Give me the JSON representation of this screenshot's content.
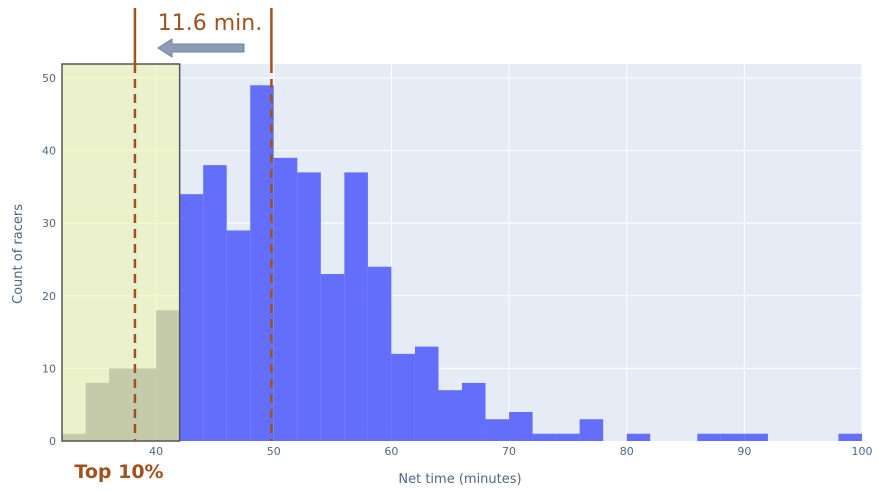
{
  "chart_data": {
    "type": "bar",
    "title": "",
    "xlabel": "Net time (minutes)",
    "ylabel": "Count of racers",
    "xlim": [
      32,
      100
    ],
    "ylim": [
      0,
      52
    ],
    "x_ticks": [
      "40",
      "50",
      "60",
      "70",
      "80",
      "90",
      "100"
    ],
    "x_tick_values": [
      40,
      50,
      60,
      70,
      80,
      90,
      100
    ],
    "y_ticks": [
      "0",
      "10",
      "20",
      "30",
      "40",
      "50"
    ],
    "y_tick_values": [
      0,
      10,
      20,
      30,
      40,
      50
    ],
    "bin_width": 2,
    "bins": [
      {
        "start": 32,
        "count": 1
      },
      {
        "start": 34,
        "count": 8
      },
      {
        "start": 36,
        "count": 10
      },
      {
        "start": 38,
        "count": 10
      },
      {
        "start": 40,
        "count": 18
      },
      {
        "start": 42,
        "count": 34
      },
      {
        "start": 44,
        "count": 38
      },
      {
        "start": 46,
        "count": 29
      },
      {
        "start": 48,
        "count": 49
      },
      {
        "start": 50,
        "count": 39
      },
      {
        "start": 52,
        "count": 37
      },
      {
        "start": 54,
        "count": 23
      },
      {
        "start": 56,
        "count": 37
      },
      {
        "start": 58,
        "count": 24
      },
      {
        "start": 60,
        "count": 12
      },
      {
        "start": 62,
        "count": 13
      },
      {
        "start": 64,
        "count": 7
      },
      {
        "start": 66,
        "count": 8
      },
      {
        "start": 68,
        "count": 3
      },
      {
        "start": 70,
        "count": 4
      },
      {
        "start": 72,
        "count": 1
      },
      {
        "start": 74,
        "count": 1
      },
      {
        "start": 76,
        "count": 3
      },
      {
        "start": 80,
        "count": 1
      },
      {
        "start": 86,
        "count": 1
      },
      {
        "start": 88,
        "count": 1
      },
      {
        "start": 90,
        "count": 1
      },
      {
        "start": 98,
        "count": 1
      }
    ],
    "highlight_region": {
      "x_end": 42,
      "label": "Top 10%"
    },
    "reference_lines": [
      {
        "x": 38.2
      },
      {
        "x": 49.8
      }
    ],
    "difference_annotation": {
      "label": "11.6 min."
    },
    "grid": true,
    "colors": {
      "bar": "#636efa",
      "plot_bg": "#e5ecf6",
      "highlight_fill": "#f0f5a8",
      "highlight_bar": "#8f94ad",
      "annotation": "#a0521e",
      "arrow": "#8b9bb8"
    }
  }
}
